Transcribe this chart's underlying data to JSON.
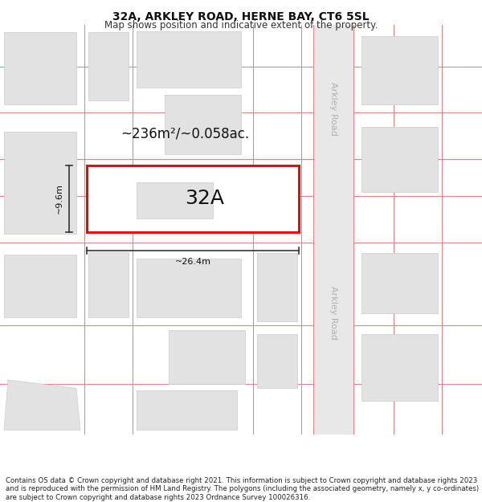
{
  "title": "32A, ARKLEY ROAD, HERNE BAY, CT6 5SL",
  "subtitle": "Map shows position and indicative extent of the property.",
  "footer": "Contains OS data © Crown copyright and database right 2021. This information is subject to Crown copyright and database rights 2023 and is reproduced with the permission of HM Land Registry. The polygons (including the associated geometry, namely x, y co-ordinates) are subject to Crown copyright and database rights 2023 Ordnance Survey 100026316.",
  "background_color": "#ffffff",
  "map_bg": "#f5f5f5",
  "road_strip_color": "#e8e8e8",
  "boundary_line_color": "#e08080",
  "building_fill": "#e2e2e2",
  "building_edge": "#cccccc",
  "highlight_fill": "#ffffff",
  "highlight_edge": "#ff0000",
  "highlight_edge_width": 2.2,
  "road_label": "Arkley Road",
  "area_label": "~236m²/~0.058ac.",
  "plot_label": "32A",
  "dim_width": "~26.4m",
  "dim_height": "~9.6m",
  "title_fontsize": 10,
  "subtitle_fontsize": 8.5,
  "footer_fontsize": 6.2,
  "road_label_fontsize": 8,
  "area_label_fontsize": 12,
  "plot_label_fontsize": 18,
  "dim_fontsize": 8
}
